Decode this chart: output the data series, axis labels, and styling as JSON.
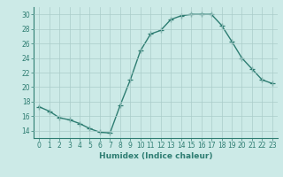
{
  "x": [
    0,
    1,
    2,
    3,
    4,
    5,
    6,
    7,
    8,
    9,
    10,
    11,
    12,
    13,
    14,
    15,
    16,
    17,
    18,
    19,
    20,
    21,
    22,
    23
  ],
  "y": [
    17.3,
    16.7,
    15.8,
    15.5,
    15.0,
    14.3,
    13.8,
    13.7,
    17.5,
    21.0,
    25.0,
    27.3,
    27.8,
    29.3,
    29.8,
    30.0,
    30.0,
    30.0,
    28.5,
    26.3,
    24.0,
    22.5,
    21.0,
    20.5
  ],
  "line_color": "#2e7d72",
  "marker": "+",
  "markersize": 4,
  "linewidth": 1.0,
  "xlabel": "Humidex (Indice chaleur)",
  "xlim": [
    -0.5,
    23.5
  ],
  "ylim": [
    13,
    31
  ],
  "yticks": [
    14,
    16,
    18,
    20,
    22,
    24,
    26,
    28,
    30
  ],
  "xticks": [
    0,
    1,
    2,
    3,
    4,
    5,
    6,
    7,
    8,
    9,
    10,
    11,
    12,
    13,
    14,
    15,
    16,
    17,
    18,
    19,
    20,
    21,
    22,
    23
  ],
  "xtick_labels": [
    "0",
    "1",
    "2",
    "3",
    "4",
    "5",
    "6",
    "7",
    "8",
    "9",
    "10",
    "11",
    "12",
    "13",
    "14",
    "15",
    "16",
    "17",
    "18",
    "19",
    "20",
    "21",
    "22",
    "23"
  ],
  "bg_color": "#cceae7",
  "grid_color": "#aaccca",
  "tick_color": "#2e7d72",
  "label_color": "#2e7d72",
  "xlabel_fontsize": 6.5,
  "tick_fontsize": 5.5
}
